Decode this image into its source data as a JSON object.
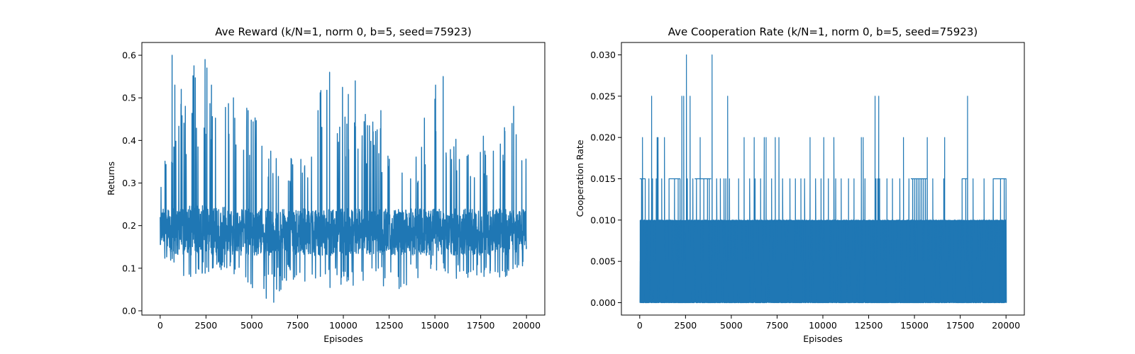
{
  "chart_data": [
    {
      "type": "line",
      "title": "Ave Reward (k/N=1, norm 0, b=5, seed=75923)",
      "xlabel": "Episodes",
      "ylabel": "Returns",
      "xlim": [
        -1000,
        21000
      ],
      "ylim": [
        -0.01,
        0.63
      ],
      "xticks": [
        0,
        2500,
        5000,
        7500,
        10000,
        12500,
        15000,
        17500,
        20000
      ],
      "xtick_labels": [
        "0",
        "2500",
        "5000",
        "7500",
        "10000",
        "12500",
        "15000",
        "17500",
        "20000"
      ],
      "yticks": [
        0.0,
        0.1,
        0.2,
        0.3,
        0.4,
        0.5,
        0.6
      ],
      "ytick_labels": [
        "0.0",
        "0.1",
        "0.2",
        "0.3",
        "0.4",
        "0.5",
        "0.6"
      ],
      "grid": false,
      "color": "#1f77b4",
      "series": [
        {
          "x": [
            0,
            1000,
            2000,
            3000,
            4000,
            5000,
            6000,
            7000,
            8000,
            9000,
            10000,
            11000,
            12000,
            13000,
            14000,
            15000,
            16000,
            17000,
            18000,
            19000,
            20000
          ],
          "min": [
            0.11,
            0.08,
            0.08,
            0.09,
            0.08,
            0.05,
            0.02,
            0.07,
            0.06,
            0.04,
            0.06,
            0.05,
            0.04,
            0.05,
            0.07,
            0.08,
            0.07,
            0.08,
            0.08,
            0.07,
            0.1
          ],
          "q25": [
            0.15,
            0.13,
            0.13,
            0.13,
            0.13,
            0.13,
            0.13,
            0.13,
            0.13,
            0.13,
            0.13,
            0.13,
            0.13,
            0.13,
            0.13,
            0.13,
            0.13,
            0.13,
            0.13,
            0.13,
            0.14
          ],
          "mean": [
            0.19,
            0.18,
            0.19,
            0.19,
            0.18,
            0.18,
            0.18,
            0.18,
            0.18,
            0.18,
            0.18,
            0.18,
            0.18,
            0.18,
            0.18,
            0.18,
            0.18,
            0.18,
            0.18,
            0.18,
            0.19
          ],
          "q75": [
            0.24,
            0.24,
            0.25,
            0.25,
            0.24,
            0.24,
            0.24,
            0.24,
            0.24,
            0.24,
            0.24,
            0.24,
            0.24,
            0.24,
            0.24,
            0.24,
            0.24,
            0.24,
            0.24,
            0.24,
            0.24
          ],
          "max": [
            0.32,
            0.52,
            0.59,
            0.53,
            0.5,
            0.47,
            0.4,
            0.38,
            0.4,
            0.56,
            0.54,
            0.47,
            0.43,
            0.4,
            0.38,
            0.55,
            0.42,
            0.38,
            0.43,
            0.48,
            0.38
          ],
          "spikes": [
            [
              650,
              0.6
            ],
            [
              800,
              0.53
            ],
            [
              1150,
              0.52
            ],
            [
              2450,
              0.59
            ],
            [
              2550,
              0.57
            ],
            [
              2800,
              0.53
            ],
            [
              4000,
              0.5
            ],
            [
              4800,
              0.47
            ],
            [
              9250,
              0.56
            ],
            [
              10650,
              0.54
            ],
            [
              12050,
              0.47
            ],
            [
              15450,
              0.55
            ],
            [
              19300,
              0.48
            ],
            [
              18800,
              0.43
            ],
            [
              6200,
              0.02
            ]
          ]
        }
      ]
    },
    {
      "type": "line",
      "title": "Ave Cooperation Rate (k/N=1, norm 0, b=5, seed=75923)",
      "xlabel": "Episodes",
      "ylabel": "Cooperation Rate",
      "xlim": [
        -1000,
        21000
      ],
      "ylim": [
        -0.0015,
        0.0315
      ],
      "xticks": [
        0,
        2500,
        5000,
        7500,
        10000,
        12500,
        15000,
        17500,
        20000
      ],
      "xtick_labels": [
        "0",
        "2500",
        "5000",
        "7500",
        "10000",
        "12500",
        "15000",
        "17500",
        "20000"
      ],
      "yticks": [
        0.0,
        0.005,
        0.01,
        0.015,
        0.02,
        0.025,
        0.03
      ],
      "ytick_labels": [
        "0.000",
        "0.005",
        "0.010",
        "0.015",
        "0.020",
        "0.025",
        "0.030"
      ],
      "grid": false,
      "color": "#1f77b4",
      "series": [
        {
          "base_min": 0.0,
          "base_max": 0.01,
          "level_015_episodes": [
            100,
            300,
            500,
            700,
            900,
            1200,
            1600,
            1900,
            2100,
            2200,
            2600,
            2900,
            3100,
            3300,
            3500,
            3700,
            3800,
            4200,
            4400,
            4600,
            4700,
            4900,
            5400,
            6000,
            6300,
            6600,
            6900,
            7200,
            7600,
            7800,
            8200,
            8500,
            8800,
            9000,
            9300,
            9600,
            9900,
            10300,
            10700,
            11000,
            11400,
            11700,
            12100,
            12200,
            12300,
            12900,
            13000,
            13100,
            13500,
            13800,
            14200,
            14400,
            14700,
            14900,
            15000,
            15100,
            15200,
            15300,
            15400,
            15500,
            15600,
            15700,
            16000,
            16600,
            17600,
            17800,
            18200,
            18800,
            19300,
            19700,
            19900,
            20000
          ],
          "spikes": [
            [
              150,
              0.02
            ],
            [
              650,
              0.025
            ],
            [
              950,
              0.02
            ],
            [
              1000,
              0.02
            ],
            [
              1350,
              0.02
            ],
            [
              2300,
              0.025
            ],
            [
              2400,
              0.025
            ],
            [
              2550,
              0.03
            ],
            [
              2750,
              0.025
            ],
            [
              3300,
              0.02
            ],
            [
              3950,
              0.03
            ],
            [
              4800,
              0.025
            ],
            [
              5700,
              0.02
            ],
            [
              6250,
              0.02
            ],
            [
              6800,
              0.02
            ],
            [
              6900,
              0.02
            ],
            [
              7400,
              0.02
            ],
            [
              7600,
              0.02
            ],
            [
              9300,
              0.02
            ],
            [
              10050,
              0.02
            ],
            [
              10600,
              0.02
            ],
            [
              12100,
              0.02
            ],
            [
              12200,
              0.02
            ],
            [
              12850,
              0.025
            ],
            [
              13050,
              0.025
            ],
            [
              14400,
              0.02
            ],
            [
              15700,
              0.02
            ],
            [
              16650,
              0.02
            ],
            [
              17900,
              0.025
            ]
          ]
        }
      ]
    }
  ]
}
